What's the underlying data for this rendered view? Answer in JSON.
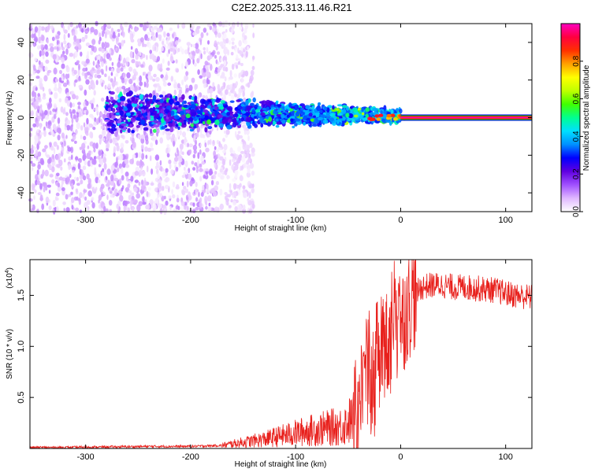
{
  "title": "C2E2.2025.313.11.46.R21",
  "chart_data": [
    {
      "type": "heatmap",
      "name": "spectrogram",
      "xlabel": "Height of straight line (km)",
      "ylabel": "Frequency (Hz)",
      "xlim": [
        -353,
        125
      ],
      "ylim": [
        -50,
        50
      ],
      "xticks": [
        -300,
        -200,
        -100,
        0,
        100
      ],
      "xtick_labels": [
        "-300",
        "-200",
        "-100",
        "0",
        "100"
      ],
      "yticks": [
        -40,
        -20,
        0,
        20,
        40
      ],
      "ytick_labels": [
        "-40",
        "-20",
        "0",
        "20",
        "40"
      ],
      "colorbar": {
        "label": "Normalized spectral amplitude",
        "range": [
          0,
          1
        ],
        "ticks": [
          0.0,
          0.2,
          0.4,
          0.6,
          0.8
        ],
        "tick_labels": [
          "0.0",
          "0.2",
          "0.4",
          "0.6",
          "0.8"
        ],
        "colormap": [
          "#ffffff",
          "#e0b8ff",
          "#a050ff",
          "#6000e0",
          "#0000ff",
          "#0090ff",
          "#00e0ff",
          "#00ff90",
          "#40ff00",
          "#c0ff00",
          "#ffff00",
          "#ffa000",
          "#ff3000",
          "#ff0040",
          "#ff00c0"
        ]
      },
      "regions": [
        {
          "name": "noise-band",
          "x_range": [
            -353,
            -160
          ],
          "y_range": [
            -50,
            50
          ],
          "amplitude": [
            0.02,
            0.12
          ]
        },
        {
          "name": "meteor-trail",
          "x_range": [
            -280,
            0
          ],
          "center_hz": 3,
          "spread_hz": [
            12,
            4
          ],
          "amplitude": [
            0.1,
            0.45
          ]
        },
        {
          "name": "carrier-line",
          "x_range": [
            0,
            125
          ],
          "center_hz": 0,
          "amplitude": 1.0
        }
      ]
    },
    {
      "type": "line",
      "name": "snr",
      "xlabel": "Height of straight line (km)",
      "ylabel": "SNR (10 * v/v)",
      "scale_note": "(x10^4)",
      "scale_base": "(x10",
      "scale_exp": "4",
      "scale_close": ")",
      "xlim": [
        -353,
        125
      ],
      "ylim": [
        0,
        1.85
      ],
      "xticks": [
        -300,
        -200,
        -100,
        0,
        100
      ],
      "xtick_labels": [
        "-300",
        "-200",
        "-100",
        "0",
        "100"
      ],
      "yticks": [
        0.5,
        1.0,
        1.5
      ],
      "ytick_labels": [
        "0.5",
        "1.0",
        "1.5"
      ],
      "color": "#e8201c",
      "series": [
        {
          "name": "SNR",
          "x": [
            -353,
            -320,
            -280,
            -240,
            -200,
            -170,
            -150,
            -130,
            -110,
            -90,
            -70,
            -55,
            -45,
            -38,
            -30,
            -25,
            -20,
            -15,
            -10,
            -5,
            0,
            5,
            10,
            15,
            20,
            30,
            40,
            50,
            60,
            70,
            80,
            90,
            100,
            110,
            125
          ],
          "y": [
            0.01,
            0.01,
            0.015,
            0.02,
            0.02,
            0.03,
            0.06,
            0.09,
            0.13,
            0.17,
            0.2,
            0.22,
            0.3,
            0.5,
            0.75,
            0.85,
            0.95,
            1.0,
            1.05,
            1.1,
            1.2,
            1.35,
            1.45,
            1.52,
            1.58,
            1.6,
            1.6,
            1.58,
            1.58,
            1.57,
            1.56,
            1.55,
            1.52,
            1.5,
            1.48
          ]
        }
      ]
    }
  ]
}
